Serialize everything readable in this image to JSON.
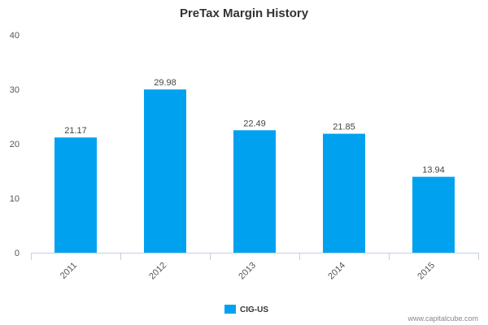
{
  "chart_data": {
    "type": "bar",
    "title": "PreTax Margin History",
    "categories": [
      "2011",
      "2012",
      "2013",
      "2014",
      "2015"
    ],
    "series": [
      {
        "name": "CIG-US",
        "values": [
          21.17,
          29.98,
          22.49,
          21.85,
          13.94
        ],
        "value_labels": [
          "21.17",
          "29.98",
          "22.49",
          "21.85",
          "13.94"
        ],
        "color": "#00a2f0"
      }
    ],
    "ylim": [
      0,
      40
    ],
    "y_ticks": [
      0,
      10,
      20,
      30,
      40
    ],
    "xlabel": "",
    "ylabel": "",
    "grid": false,
    "legend_position": "bottom-center",
    "x_tick_rotation": "slanted"
  },
  "credit": "www.capitalcube.com",
  "colors": {
    "bar": "#00a2f0",
    "axis": "#c0d0e0"
  }
}
